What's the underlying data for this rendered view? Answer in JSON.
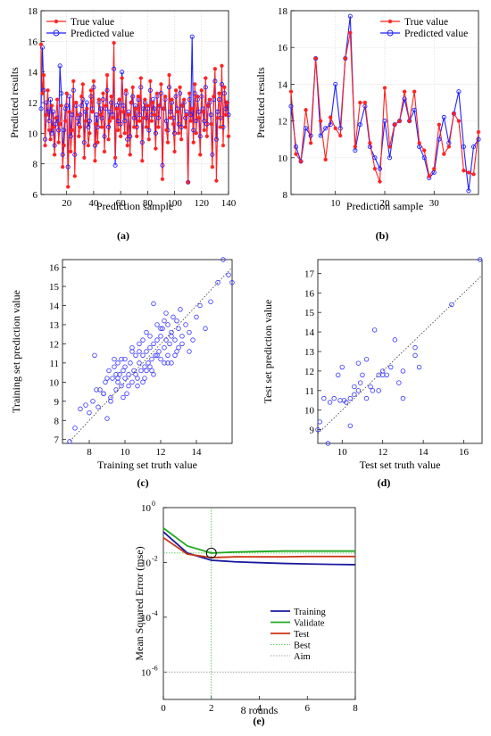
{
  "panels": [
    {
      "id": "a",
      "caption": "(a)",
      "chart_data": {
        "type": "line",
        "xlabel": "Prediction sample",
        "ylabel": "Predicted results",
        "xlim": [
          1,
          140
        ],
        "ylim": [
          6,
          18
        ],
        "xticks": [
          20,
          40,
          60,
          80,
          100,
          120,
          140
        ],
        "yticks": [
          6,
          8,
          10,
          12,
          14,
          16,
          18
        ],
        "legend_position": "top-left",
        "grid": true,
        "series": [
          {
            "name": "True value",
            "color": "#ff2020",
            "marker": "star",
            "values": [
              15.8,
              12.6,
              13.8,
              9.2,
              11.2,
              12.8,
              10.2,
              9.6,
              11.8,
              10.4,
              8.6,
              11.0,
              12.2,
              9.4,
              10.6,
              11.8,
              7.8,
              9.2,
              10.8,
              12.6,
              6.5,
              11.4,
              8.8,
              10.2,
              13.4,
              7.2,
              12.0,
              11.2,
              9.8,
              10.4,
              12.4,
              13.2,
              8.4,
              10.8,
              11.6,
              9.2,
              10.0,
              12.8,
              11.4,
              13.4,
              8.2,
              10.6,
              9.4,
              12.2,
              11.2,
              10.4,
              12.6,
              8.8,
              11.8,
              13.8,
              9.6,
              10.8,
              12.4,
              11.0,
              15.9,
              8.4,
              11.6,
              10.2,
              12.2,
              9.8,
              13.6,
              11.4,
              10.0,
              12.8,
              9.2,
              11.2,
              8.6,
              12.0,
              13.0,
              10.4,
              11.6,
              9.8,
              12.4,
              10.8,
              13.6,
              8.2,
              11.0,
              12.2,
              10.4,
              11.8,
              9.6,
              13.4,
              10.8,
              12.0,
              11.2,
              9.0,
              12.6,
              10.4,
              11.8,
              13.2,
              7.0,
              11.6,
              12.4,
              10.2,
              9.4,
              13.8,
              11.0,
              12.2,
              10.6,
              8.8,
              12.8,
              11.4,
              10.0,
              13.0,
              9.6,
              11.8,
              12.2,
              10.4,
              11.2,
              6.8,
              12.6,
              10.8,
              11.6,
              9.4,
              13.2,
              10.0,
              12.4,
              11.0,
              8.6,
              12.8,
              11.4,
              10.2,
              13.6,
              9.8,
              11.8,
              12.2,
              10.6,
              7.8,
              12.4,
              14.2,
              6.9,
              11.0,
              12.6,
              10.4,
              14.4,
              9.2,
              13.0,
              11.2,
              12.0,
              9.8
            ]
          },
          {
            "name": "Predicted value",
            "color": "#2020ff",
            "marker": "circle",
            "values": [
              11.6,
              15.6,
              12.8,
              9.6,
              12.0,
              11.4,
              10.8,
              12.2,
              10.0,
              11.4,
              9.2,
              10.6,
              11.0,
              10.2,
              14.4,
              12.6,
              8.6,
              10.2,
              11.6,
              11.8,
              7.8,
              12.4,
              9.8,
              11.2,
              12.8,
              8.6,
              11.8,
              11.0,
              10.6,
              11.2,
              11.8,
              12.2,
              9.4,
              11.4,
              12.0,
              10.4,
              10.8,
              12.4,
              11.6,
              13.0,
              9.2,
              11.2,
              10.4,
              12.0,
              11.6,
              11.0,
              12.2,
              9.8,
              11.6,
              12.8,
              10.4,
              11.4,
              12.0,
              11.2,
              14.2,
              7.9,
              11.8,
              10.8,
              12.0,
              10.6,
              14.0,
              11.8,
              10.8,
              12.6,
              9.6,
              11.4,
              9.8,
              12.0,
              12.4,
              11.0,
              11.8,
              10.4,
              12.2,
              11.2,
              13.0,
              9.4,
              11.6,
              12.0,
              11.0,
              11.6,
              10.2,
              12.8,
              11.2,
              12.2,
              11.6,
              10.0,
              12.4,
              11.0,
              11.8,
              12.6,
              7.9,
              11.6,
              12.2,
              10.8,
              10.2,
              13.0,
              11.4,
              12.0,
              11.0,
              10.0,
              12.4,
              11.6,
              10.6,
              12.6,
              10.4,
              11.8,
              12.0,
              11.0,
              11.4,
              6.8,
              12.2,
              11.2,
              16.3,
              10.2,
              12.6,
              10.8,
              12.2,
              11.4,
              9.8,
              12.4,
              11.6,
              10.8,
              13.0,
              10.6,
              11.8,
              12.0,
              11.2,
              8.6,
              12.2,
              13.4,
              9.6,
              11.4,
              12.2,
              11.0,
              13.2,
              10.4,
              12.6,
              11.6,
              12.0,
              11.2
            ]
          }
        ]
      }
    },
    {
      "id": "b",
      "caption": "(b)",
      "chart_data": {
        "type": "line",
        "xlabel": "Prediction sample",
        "ylabel": "Predicted results",
        "xlim": [
          1,
          39
        ],
        "ylim": [
          8,
          18
        ],
        "xticks": [
          10,
          20,
          30
        ],
        "yticks": [
          8,
          10,
          12,
          14,
          16,
          18
        ],
        "legend_position": "top-right",
        "grid": true,
        "series": [
          {
            "name": "True value",
            "color": "#ff2020",
            "marker": "star",
            "values": [
              13.6,
              10.2,
              9.8,
              12.6,
              10.8,
              15.4,
              12.0,
              9.9,
              12.2,
              11.6,
              11.2,
              15.4,
              16.8,
              10.6,
              13.0,
              13.0,
              10.8,
              9.4,
              8.7,
              13.8,
              10.6,
              11.8,
              12.0,
              13.6,
              12.0,
              13.6,
              10.8,
              10.4,
              9.0,
              9.4,
              11.8,
              10.2,
              10.6,
              12.4,
              12.0,
              9.3,
              9.2,
              9.1,
              11.4
            ]
          },
          {
            "name": "Predicted value",
            "color": "#2020ff",
            "marker": "circle",
            "values": [
              12.8,
              10.6,
              9.8,
              11.6,
              11.2,
              15.4,
              11.2,
              11.6,
              11.8,
              14.0,
              11.6,
              15.4,
              17.7,
              10.4,
              11.8,
              12.8,
              10.6,
              10.0,
              9.4,
              12.0,
              10.0,
              11.8,
              12.0,
              13.2,
              12.0,
              12.6,
              10.6,
              10.0,
              8.9,
              9.2,
              11.0,
              12.2,
              10.8,
              12.4,
              13.6,
              10.6,
              8.2,
              10.6,
              11.0
            ]
          }
        ]
      }
    },
    {
      "id": "c",
      "caption": "(c)",
      "chart_data": {
        "type": "scatter",
        "xlabel": "Training set truth value",
        "ylabel": "Training set prediction value",
        "xlim": [
          6.5,
          16
        ],
        "ylim": [
          6.8,
          16.4
        ],
        "xticks": [
          8,
          10,
          12,
          14
        ],
        "yticks": [
          7,
          8,
          9,
          10,
          11,
          12,
          13,
          14,
          15,
          16
        ],
        "reference_line": "y = x",
        "grid": false,
        "color": "#3030ff",
        "x": [
          6.9,
          7.2,
          7.5,
          7.8,
          8.0,
          8.2,
          8.3,
          8.5,
          8.6,
          8.8,
          8.9,
          9.0,
          9.1,
          9.2,
          9.3,
          9.4,
          9.5,
          9.6,
          9.6,
          9.7,
          9.8,
          9.9,
          10.0,
          10.0,
          10.1,
          10.2,
          10.3,
          10.4,
          10.4,
          10.5,
          10.6,
          10.7,
          10.8,
          10.8,
          10.9,
          11.0,
          11.0,
          11.1,
          11.2,
          11.2,
          11.3,
          11.4,
          11.4,
          11.5,
          11.6,
          11.6,
          11.7,
          11.8,
          11.8,
          11.9,
          12.0,
          12.0,
          12.1,
          12.2,
          12.2,
          12.3,
          12.4,
          12.4,
          12.5,
          12.6,
          12.6,
          12.7,
          12.8,
          12.9,
          13.0,
          13.1,
          13.2,
          13.4,
          13.6,
          13.8,
          14.0,
          14.2,
          14.5,
          14.8,
          15.2,
          15.5,
          15.8,
          16.0,
          8.4,
          9.0,
          9.4,
          9.8,
          10.2,
          10.6,
          11.0,
          11.4,
          11.8,
          12.2,
          12.6,
          13.0,
          9.2,
          10.0,
          10.8,
          11.6,
          12.4,
          13.2,
          8.8,
          9.6,
          10.4,
          11.2,
          12.0,
          12.8,
          13.6,
          9.9,
          11.1,
          12.3,
          11.5,
          10.7,
          9.5,
          12.9
        ],
        "y": [
          6.9,
          7.6,
          8.6,
          8.8,
          8.4,
          9.0,
          11.4,
          8.7,
          9.6,
          9.4,
          10.0,
          8.1,
          10.6,
          9.2,
          10.2,
          11.2,
          9.6,
          10.0,
          11.0,
          10.4,
          9.8,
          10.6,
          10.2,
          11.2,
          9.4,
          10.4,
          11.0,
          10.0,
          11.8,
          10.6,
          11.4,
          10.2,
          11.0,
          12.0,
          10.6,
          11.4,
          12.2,
          10.8,
          11.6,
          12.6,
          11.0,
          11.8,
          12.4,
          11.2,
          12.0,
          14.1,
          11.4,
          12.2,
          13.0,
          11.6,
          12.4,
          11.2,
          12.8,
          11.8,
          13.2,
          12.2,
          11.4,
          13.0,
          12.0,
          12.6,
          11.0,
          13.4,
          12.2,
          11.6,
          12.8,
          13.8,
          12.4,
          13.0,
          11.6,
          12.2,
          13.4,
          14.0,
          12.8,
          14.2,
          15.2,
          16.4,
          15.6,
          15.2,
          9.6,
          10.2,
          10.8,
          11.2,
          9.8,
          10.4,
          10.0,
          10.8,
          11.4,
          11.0,
          12.4,
          11.8,
          9.0,
          10.8,
          11.6,
          10.4,
          11.0,
          12.0,
          9.4,
          10.2,
          11.6,
          10.6,
          12.8,
          11.4,
          12.6,
          9.2,
          10.2,
          13.6,
          10.6,
          9.8,
          10.4,
          13.2
        ]
      }
    },
    {
      "id": "d",
      "caption": "(d)",
      "chart_data": {
        "type": "scatter",
        "xlabel": "Test set truth value",
        "ylabel": "Test set prediction value",
        "xlim": [
          8.8,
          16.9
        ],
        "ylim": [
          8.3,
          17.7
        ],
        "xticks": [
          10,
          12,
          14,
          16
        ],
        "yticks": [
          9,
          10,
          11,
          12,
          13,
          14,
          15,
          16,
          17
        ],
        "reference_line": "y = x",
        "grid": false,
        "color": "#3030ff",
        "x": [
          8.8,
          8.9,
          9.1,
          9.3,
          9.4,
          9.6,
          9.8,
          10.0,
          10.1,
          10.2,
          10.4,
          10.4,
          10.6,
          10.6,
          10.8,
          10.8,
          11.0,
          11.2,
          11.2,
          11.4,
          11.6,
          11.8,
          11.8,
          12.0,
          12.0,
          12.2,
          12.4,
          12.6,
          13.0,
          13.0,
          13.6,
          13.6,
          13.8,
          15.4,
          16.8,
          9.9,
          10.9,
          11.5,
          12.8
        ],
        "y": [
          9.0,
          9.4,
          10.6,
          8.3,
          10.4,
          10.6,
          11.8,
          12.2,
          10.5,
          10.4,
          10.6,
          9.2,
          10.8,
          11.2,
          11.0,
          12.4,
          11.8,
          10.6,
          12.6,
          11.2,
          14.1,
          11.0,
          11.8,
          11.8,
          12.0,
          11.8,
          12.2,
          13.6,
          12.0,
          10.6,
          12.8,
          13.2,
          12.2,
          15.4,
          17.7,
          10.5,
          11.4,
          11.0,
          11.4
        ]
      }
    },
    {
      "id": "e",
      "caption": "(e)",
      "chart_data": {
        "type": "line",
        "log_y": true,
        "xlabel": "8 rounds",
        "ylabel": "Mean Squared Error  (mse)",
        "xlim": [
          0,
          8
        ],
        "ylim": [
          1e-07,
          1
        ],
        "xticks": [
          0,
          2,
          4,
          6,
          8
        ],
        "yticks": [
          1,
          0.01,
          0.0001,
          1e-06
        ],
        "yticklabels": [
          {
            "base": "10",
            "exp": "0"
          },
          {
            "base": "10",
            "exp": "-2"
          },
          {
            "base": "10",
            "exp": "-4"
          },
          {
            "base": "10",
            "exp": "-6"
          }
        ],
        "legend_position": "bottom-right",
        "x": [
          0,
          1,
          2,
          3,
          4,
          5,
          6,
          7,
          8
        ],
        "series": [
          {
            "name": "Training",
            "color": "#1a1aa0",
            "values": [
              0.13,
              0.022,
              0.012,
              0.0105,
              0.0098,
              0.0092,
              0.0088,
              0.0085,
              0.0083
            ]
          },
          {
            "name": "Validate",
            "color": "#22aa22",
            "values": [
              0.18,
              0.04,
              0.022,
              0.024,
              0.025,
              0.026,
              0.026,
              0.026,
              0.026
            ]
          },
          {
            "name": "Test",
            "color": "#cc3311",
            "values": [
              0.08,
              0.02,
              0.015,
              0.016,
              0.016,
              0.016,
              0.0165,
              0.0165,
              0.0165
            ]
          },
          {
            "name": "Best",
            "color": "#33bb33",
            "dotted": true
          },
          {
            "name": "Aim",
            "color": "#888888",
            "dotted": true,
            "value": 1e-06
          }
        ],
        "best_epoch": 2,
        "best_value": 0.022
      }
    }
  ]
}
